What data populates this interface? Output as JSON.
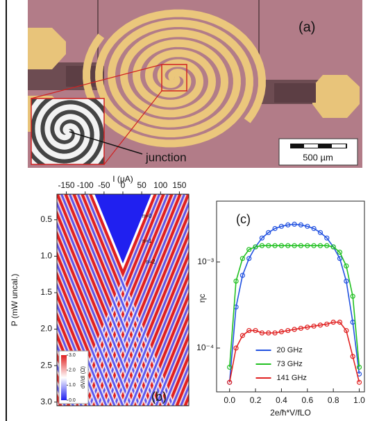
{
  "panel_a": {
    "label": "(a)",
    "annotation": "junction",
    "scale_bar": "500 µm"
  },
  "chart_data": [
    {
      "type": "heatmap",
      "label": "(b)",
      "x_label": "I (μA)",
      "y_label": "P (mW uncal.)",
      "xlim": [
        -175,
        175
      ],
      "xticks": [
        -150,
        -100,
        -50,
        0,
        50,
        100,
        150
      ],
      "ylim": [
        3.05,
        0.15
      ],
      "yticks": [
        0.5,
        {
          "value": 1,
          "label": "1.0"
        },
        1.5,
        {
          "value": 2,
          "label": "2.0"
        },
        2.5,
        {
          "value": 3,
          "label": "3.0"
        }
      ],
      "annotations": [
        "n=0",
        "n=1",
        "n=2"
      ],
      "colorbar": {
        "label": "dV/dI (Ω)",
        "clim": [
          0,
          3
        ],
        "ticks": [
          {
            "value": 0,
            "label": "0.0"
          },
          {
            "value": 1,
            "label": "1.0"
          },
          {
            "value": 2,
            "label": "2.0"
          },
          {
            "value": 3,
            "label": "3.0"
          }
        ],
        "colors": [
          "#2020f0",
          "#ffffff",
          "#e02020"
        ]
      }
    },
    {
      "type": "line",
      "label": "(c)",
      "x_label": "2e/ħ*V/fLO",
      "y_label": "ηc",
      "log_y": true,
      "markers": true,
      "legend": "lower center",
      "xlim": [
        -0.1,
        1.04
      ],
      "xticks": [
        {
          "value": 0,
          "label": "0.0"
        },
        0.2,
        0.4,
        0.6,
        0.8,
        {
          "value": 1,
          "label": "1.0"
        }
      ],
      "ylim": [
        3.1e-05,
        0.0051
      ],
      "yticks": [
        {
          "value": 0.0001,
          "label": "10⁻⁴"
        },
        {
          "value": 0.001,
          "label": "10⁻³"
        }
      ],
      "x": [
        0,
        0.05,
        0.1,
        0.15,
        0.2,
        0.25,
        0.3,
        0.35,
        0.4,
        0.45,
        0.5,
        0.55,
        0.6,
        0.65,
        0.7,
        0.75,
        0.8,
        0.85,
        0.9,
        0.95,
        1
      ],
      "series": [
        {
          "name": "20 GHz",
          "color": "#2050e0",
          "values": [
            4e-05,
            0.0003,
            0.0007,
            0.0011,
            0.0015,
            0.0019,
            0.0022,
            0.00245,
            0.0026,
            0.0027,
            0.00275,
            0.0027,
            0.0026,
            0.00245,
            0.0022,
            0.0019,
            0.0015,
            0.0011,
            0.0006,
            0.0002,
            5e-05
          ]
        },
        {
          "name": "73 GHz",
          "color": "#20c020",
          "values": [
            6e-05,
            0.0006,
            0.0011,
            0.0014,
            0.0015,
            0.00155,
            0.00155,
            0.00155,
            0.00155,
            0.00155,
            0.00155,
            0.00155,
            0.00155,
            0.00155,
            0.00155,
            0.00155,
            0.0015,
            0.0013,
            0.0009,
            0.0004,
            6e-05
          ]
        },
        {
          "name": "141 GHz",
          "color": "#e02020",
          "values": [
            4e-05,
            0.0001,
            0.00014,
            0.00016,
            0.00016,
            0.00015,
            0.00015,
            0.00015,
            0.000155,
            0.00016,
            0.000165,
            0.00017,
            0.000175,
            0.00018,
            0.000185,
            0.00019,
            0.0002,
            0.0002,
            0.00016,
            8e-05,
            4e-05
          ]
        }
      ]
    }
  ]
}
